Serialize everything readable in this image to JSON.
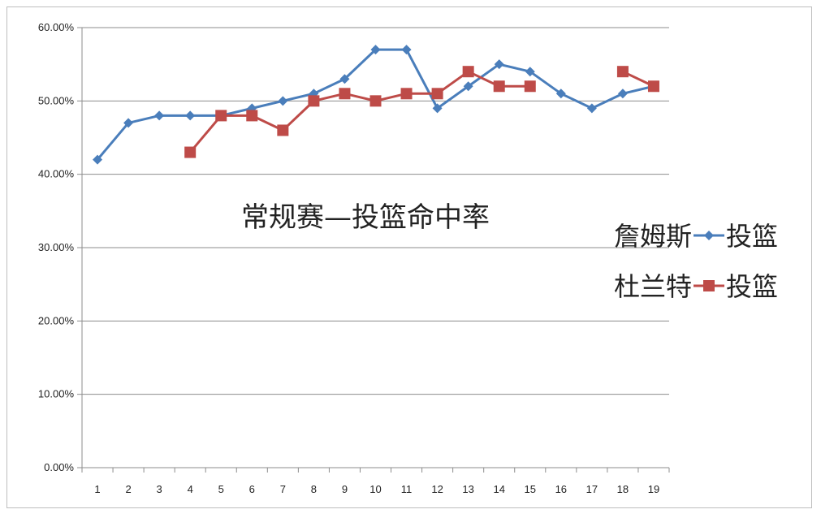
{
  "chart_data": {
    "type": "line",
    "title": "常规赛—投篮命中率",
    "xlabel": "",
    "ylabel": "",
    "x": [
      1,
      2,
      3,
      4,
      5,
      6,
      7,
      8,
      9,
      10,
      11,
      12,
      13,
      14,
      15,
      16,
      17,
      18,
      19
    ],
    "ylim": [
      0,
      0.6
    ],
    "yticks": [
      "0.00%",
      "10.00%",
      "20.00%",
      "30.00%",
      "40.00%",
      "50.00%",
      "60.00%"
    ],
    "grid": true,
    "legend_position": "right",
    "series": [
      {
        "name": "詹姆斯—投篮",
        "name_part1": "詹姆斯",
        "name_part2": "投篮",
        "color": "#4a7ebb",
        "marker": "diamond",
        "values": [
          0.42,
          0.47,
          0.48,
          0.48,
          0.48,
          0.49,
          0.5,
          0.51,
          0.53,
          0.57,
          0.57,
          0.49,
          0.52,
          0.55,
          0.54,
          0.51,
          0.49,
          0.51,
          0.52
        ]
      },
      {
        "name": "杜兰特—投篮",
        "name_part1": "杜兰特",
        "name_part2": "投篮",
        "color": "#be4b48",
        "marker": "square",
        "values": [
          null,
          null,
          null,
          0.43,
          0.48,
          0.48,
          0.46,
          0.5,
          0.51,
          0.5,
          0.51,
          0.51,
          0.54,
          0.52,
          0.52,
          null,
          null,
          0.54,
          0.52
        ]
      }
    ]
  }
}
